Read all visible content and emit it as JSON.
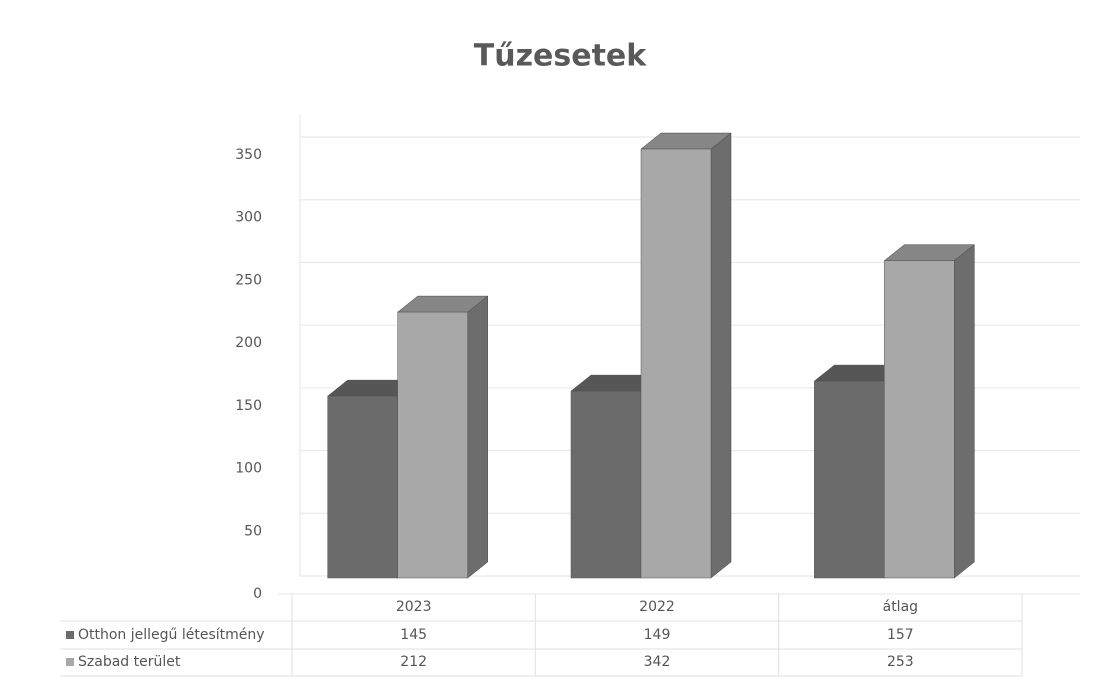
{
  "chart_data": {
    "type": "bar3d",
    "title": "Tűzesetek",
    "categories": [
      "2023",
      "2022",
      "átlag"
    ],
    "series": [
      {
        "name": "Otthon jellegű létesítmény",
        "color": "#6b6b6b",
        "values": [
          145,
          149,
          157
        ]
      },
      {
        "name": "Szabad terület",
        "color": "#a8a8a8",
        "values": [
          212,
          342,
          253
        ]
      }
    ],
    "ylim": [
      0,
      350
    ],
    "yticks": [
      0,
      50,
      100,
      150,
      200,
      250,
      300,
      350
    ],
    "grid": true,
    "data_table": true
  }
}
